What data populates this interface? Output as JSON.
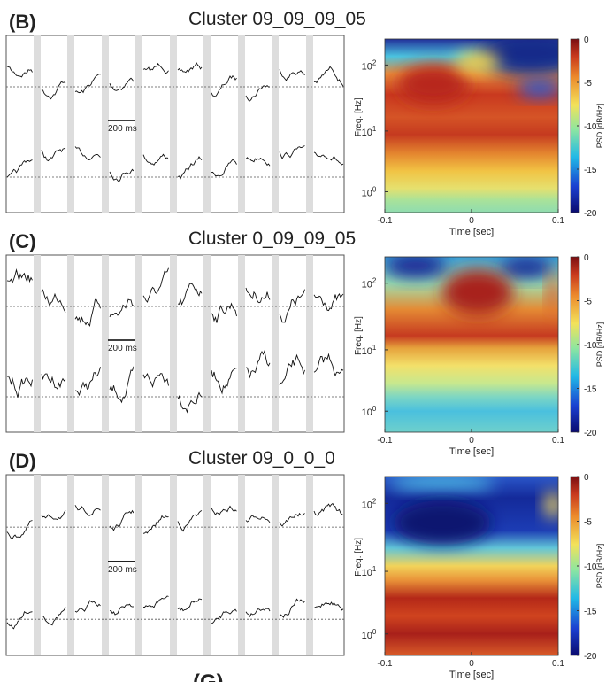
{
  "panels": [
    {
      "label": "(B)",
      "title": "Cluster 09_09_09_05",
      "scale_bar": "200 ms",
      "spectrogram": {
        "ylabel": "Freq. [Hz]",
        "xlabel": "Time [sec]",
        "xticks": [
          "-0.1",
          "0",
          "0.1"
        ],
        "yticks": [
          {
            "base": "10",
            "exponent": "2"
          },
          {
            "base": "10",
            "exponent": "1"
          },
          {
            "base": "10",
            "exponent": "0"
          }
        ],
        "colorbar_label": "PSD [dB/Hz]",
        "colorbar_ticks": [
          "0",
          "-5",
          "-10",
          "-15",
          "-20"
        ]
      }
    },
    {
      "label": "(C)",
      "title": "Cluster 0_09_09_05",
      "scale_bar": "200 ms",
      "spectrogram": {
        "ylabel": "Freq. [Hz]",
        "xlabel": "Time [sec]",
        "xticks": [
          "-0.1",
          "0",
          "0.1"
        ],
        "yticks": [
          {
            "base": "10",
            "exponent": "2"
          },
          {
            "base": "10",
            "exponent": "1"
          },
          {
            "base": "10",
            "exponent": "0"
          }
        ],
        "colorbar_label": "PSD [dB/Hz]",
        "colorbar_ticks": [
          "0",
          "-5",
          "-10",
          "-15",
          "-20"
        ]
      }
    },
    {
      "label": "(D)",
      "title": "Cluster 09_0_0_0",
      "scale_bar": "200 ms",
      "spectrogram": {
        "ylabel": "Freq. [Hz]",
        "xlabel": "Time [sec]",
        "xticks": [
          "-0.1",
          "0",
          "0.1"
        ],
        "yticks": [
          {
            "base": "10",
            "exponent": "2"
          },
          {
            "base": "10",
            "exponent": "1"
          },
          {
            "base": "10",
            "exponent": "0"
          }
        ],
        "colorbar_label": "PSD [dB/Hz]",
        "colorbar_ticks": [
          "0",
          "-5",
          "-10",
          "-15",
          "-20"
        ]
      }
    }
  ],
  "footer": "(G)"
}
